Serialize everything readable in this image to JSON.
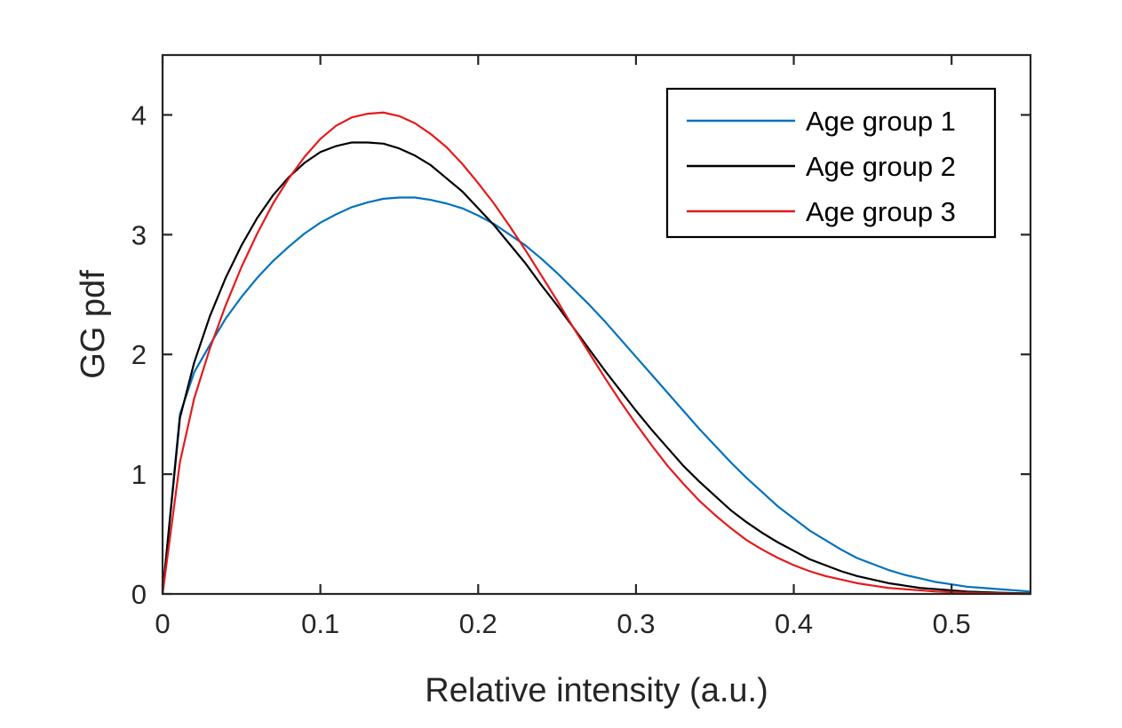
{
  "chart_data": {
    "type": "line",
    "title": "",
    "xlabel": "Relative intensity (a.u.)",
    "ylabel": "GG pdf",
    "xlim": [
      0,
      0.55
    ],
    "ylim": [
      0,
      4.5
    ],
    "xticks": [
      0,
      0.1,
      0.2,
      0.3,
      0.4,
      0.5
    ],
    "xtick_labels": [
      "0",
      "0.1",
      "0.2",
      "0.3",
      "0.4",
      "0.5"
    ],
    "yticks": [
      0,
      1,
      2,
      3,
      4
    ],
    "ytick_labels": [
      "0",
      "1",
      "2",
      "3",
      "4"
    ],
    "grid": false,
    "legend_position": "top-right",
    "x": [
      0,
      0.011,
      0.02,
      0.03,
      0.04,
      0.05,
      0.06,
      0.07,
      0.08,
      0.09,
      0.1,
      0.11,
      0.12,
      0.13,
      0.14,
      0.15,
      0.16,
      0.17,
      0.18,
      0.19,
      0.2,
      0.21,
      0.22,
      0.23,
      0.24,
      0.25,
      0.26,
      0.27,
      0.28,
      0.29,
      0.3,
      0.31,
      0.32,
      0.33,
      0.34,
      0.35,
      0.36,
      0.37,
      0.38,
      0.39,
      0.4,
      0.41,
      0.42,
      0.43,
      0.44,
      0.45,
      0.46,
      0.47,
      0.48,
      0.49,
      0.5,
      0.51,
      0.52,
      0.53,
      0.54,
      0.55
    ],
    "series": [
      {
        "name": "Age group 1",
        "color": "#0072BD",
        "values": [
          0,
          1.5,
          1.85,
          2.08,
          2.3,
          2.48,
          2.64,
          2.78,
          2.9,
          3.01,
          3.1,
          3.17,
          3.23,
          3.27,
          3.3,
          3.31,
          3.31,
          3.29,
          3.26,
          3.22,
          3.16,
          3.09,
          3.0,
          2.91,
          2.8,
          2.68,
          2.55,
          2.42,
          2.28,
          2.13,
          1.98,
          1.83,
          1.68,
          1.53,
          1.38,
          1.24,
          1.1,
          0.97,
          0.85,
          0.73,
          0.63,
          0.53,
          0.45,
          0.37,
          0.3,
          0.25,
          0.2,
          0.16,
          0.13,
          0.1,
          0.08,
          0.06,
          0.05,
          0.04,
          0.03,
          0.02
        ]
      },
      {
        "name": "Age group 2",
        "color": "#000000",
        "values": [
          0,
          1.47,
          1.93,
          2.32,
          2.64,
          2.91,
          3.14,
          3.33,
          3.48,
          3.6,
          3.69,
          3.74,
          3.77,
          3.77,
          3.76,
          3.72,
          3.66,
          3.58,
          3.47,
          3.36,
          3.22,
          3.08,
          2.92,
          2.76,
          2.58,
          2.41,
          2.23,
          2.05,
          1.87,
          1.7,
          1.53,
          1.37,
          1.22,
          1.07,
          0.94,
          0.82,
          0.7,
          0.6,
          0.51,
          0.43,
          0.36,
          0.29,
          0.24,
          0.19,
          0.15,
          0.12,
          0.09,
          0.07,
          0.05,
          0.04,
          0.03,
          0.02,
          0.015,
          0.01,
          0.007,
          0.005
        ]
      },
      {
        "name": "Age group 3",
        "color": "#E41A1C",
        "values": [
          0,
          1.1,
          1.63,
          2.05,
          2.41,
          2.73,
          3.01,
          3.26,
          3.47,
          3.65,
          3.8,
          3.91,
          3.98,
          4.01,
          4.02,
          3.99,
          3.93,
          3.84,
          3.73,
          3.59,
          3.43,
          3.26,
          3.07,
          2.87,
          2.66,
          2.45,
          2.23,
          2.02,
          1.81,
          1.61,
          1.42,
          1.24,
          1.07,
          0.92,
          0.78,
          0.66,
          0.55,
          0.45,
          0.37,
          0.3,
          0.24,
          0.19,
          0.15,
          0.12,
          0.09,
          0.07,
          0.05,
          0.04,
          0.03,
          0.02,
          0.015,
          0.01,
          0.007,
          0.005,
          0.003,
          0.002
        ]
      }
    ]
  }
}
